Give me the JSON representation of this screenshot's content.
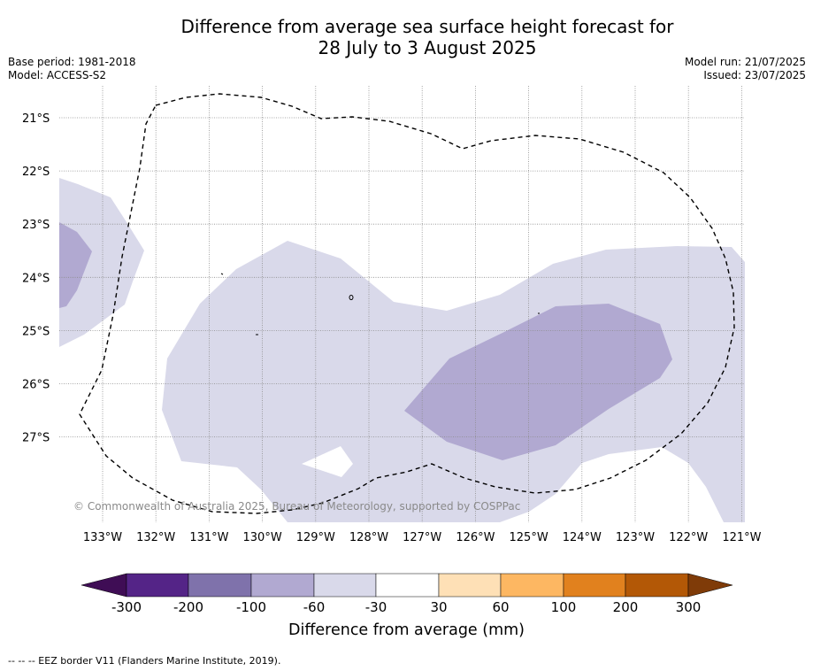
{
  "title_line1": "Difference from average sea surface height forecast for",
  "title_line2": "28 July to 3 August 2025",
  "meta_left": [
    "Base period: 1981-2018",
    "Model: ACCESS-S2"
  ],
  "meta_right": [
    "Model run: 21/07/2025",
    "Issued: 23/07/2025"
  ],
  "copyright": "© Commonwealth of Australia 2025, Bureau of Meteorology, supported by COSPPac",
  "footnote": "--  --  -- EEZ border V11 (Flanders Marine Institute, 2019).",
  "map": {
    "lon_labels": [
      "133°W",
      "132°W",
      "131°W",
      "130°W",
      "129°W",
      "128°W",
      "127°W",
      "126°W",
      "125°W",
      "124°W",
      "123°W",
      "122°W",
      "121°W"
    ],
    "lat_labels": [
      "21°S",
      "22°S",
      "23°S",
      "24°S",
      "25°S",
      "26°S",
      "27°S"
    ],
    "lon_range": [
      -133.8,
      -120.9
    ],
    "lat_range": [
      -28.6,
      -20.4
    ]
  },
  "colorbar": {
    "title": "Difference from average (mm)",
    "ticks": [
      "-300",
      "-200",
      "-100",
      "-60",
      "-30",
      "30",
      "60",
      "100",
      "200",
      "300"
    ],
    "colors": [
      "#3f0d55",
      "#542487",
      "#7f72ab",
      "#b1a9d1",
      "#d9d9ea",
      "#ffffff",
      "#fee0b6",
      "#fdb762",
      "#e1811e",
      "#b35806",
      "#7f3b08"
    ]
  }
}
